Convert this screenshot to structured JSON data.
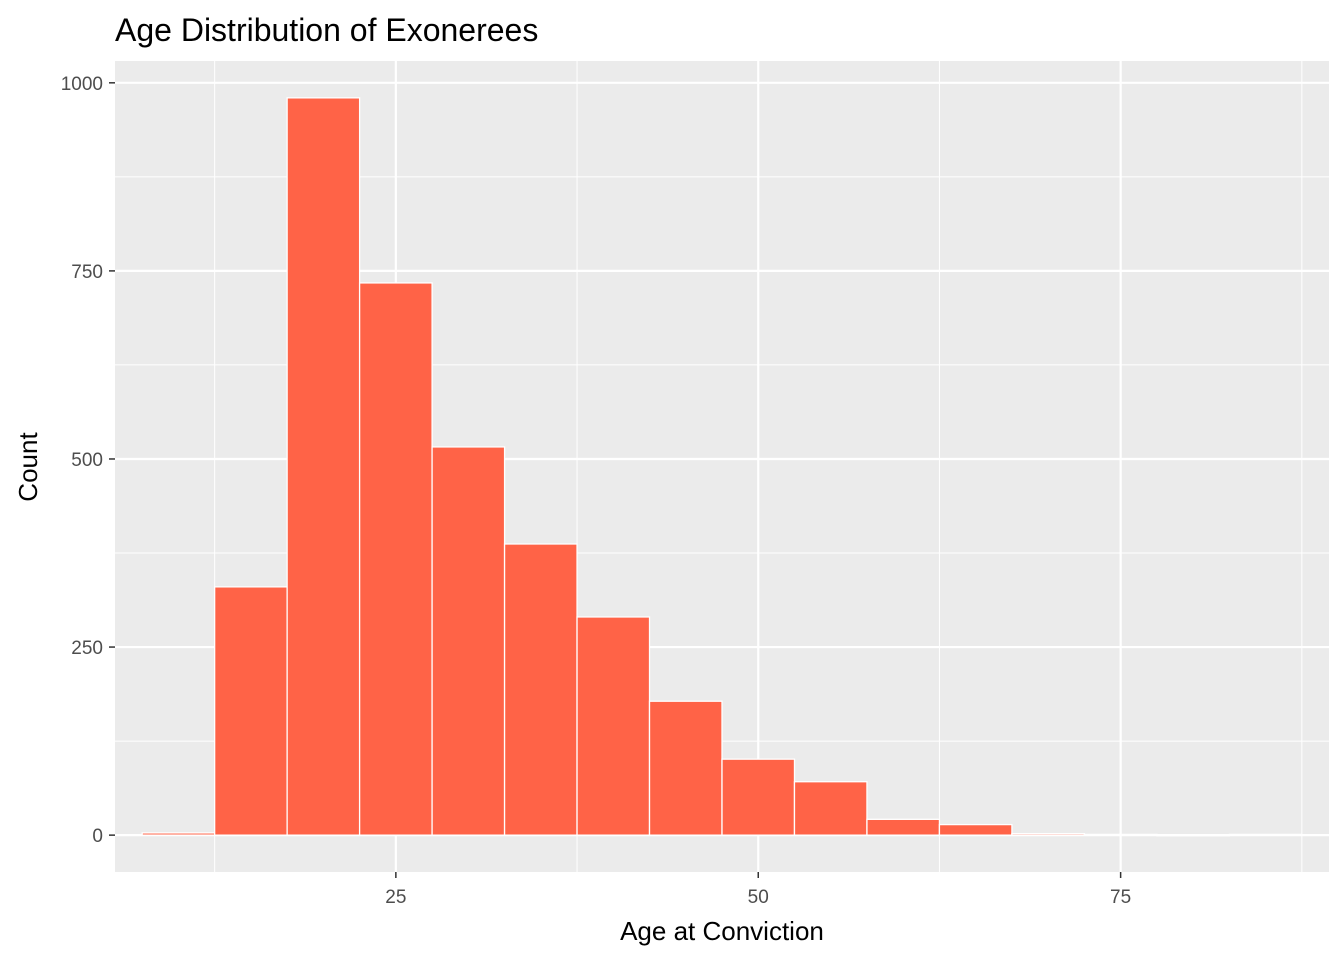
{
  "chart_data": {
    "type": "bar",
    "title": "Age Distribution of Exonerees",
    "xlabel": "Age at Conviction",
    "ylabel": "Count",
    "bin_width": 5,
    "bins": [
      {
        "start": 7.5,
        "end": 12.5,
        "count": 3
      },
      {
        "start": 12.5,
        "end": 17.5,
        "count": 330
      },
      {
        "start": 17.5,
        "end": 22.5,
        "count": 980
      },
      {
        "start": 22.5,
        "end": 27.5,
        "count": 734
      },
      {
        "start": 27.5,
        "end": 32.5,
        "count": 516
      },
      {
        "start": 32.5,
        "end": 37.5,
        "count": 387
      },
      {
        "start": 37.5,
        "end": 42.5,
        "count": 290
      },
      {
        "start": 42.5,
        "end": 47.5,
        "count": 178
      },
      {
        "start": 47.5,
        "end": 52.5,
        "count": 101
      },
      {
        "start": 52.5,
        "end": 57.5,
        "count": 71
      },
      {
        "start": 57.5,
        "end": 62.5,
        "count": 21
      },
      {
        "start": 62.5,
        "end": 67.5,
        "count": 14
      },
      {
        "start": 67.5,
        "end": 72.5,
        "count": 2
      },
      {
        "start": 72.5,
        "end": 77.5,
        "count": 1
      },
      {
        "start": 77.5,
        "end": 82.5,
        "count": 0
      },
      {
        "start": 82.5,
        "end": 87.5,
        "count": 1
      }
    ],
    "xlim": [
      5.625,
      89.375
    ],
    "ylim": [
      -49,
      1029
    ],
    "x_ticks": [
      {
        "value": 25,
        "label": "25"
      },
      {
        "value": 50,
        "label": "50"
      },
      {
        "value": 75,
        "label": "75"
      }
    ],
    "y_ticks": [
      {
        "value": 0,
        "label": "0"
      },
      {
        "value": 250,
        "label": "250"
      },
      {
        "value": 500,
        "label": "500"
      },
      {
        "value": 750,
        "label": "750"
      },
      {
        "value": 1000,
        "label": "1000"
      }
    ],
    "grid": true,
    "legend": "none",
    "colors": {
      "bar_fill": "#FF6347",
      "bar_outline": "#FFFFFF",
      "panel_background": "#EBEBEB",
      "grid_major": "#FFFFFF"
    }
  }
}
